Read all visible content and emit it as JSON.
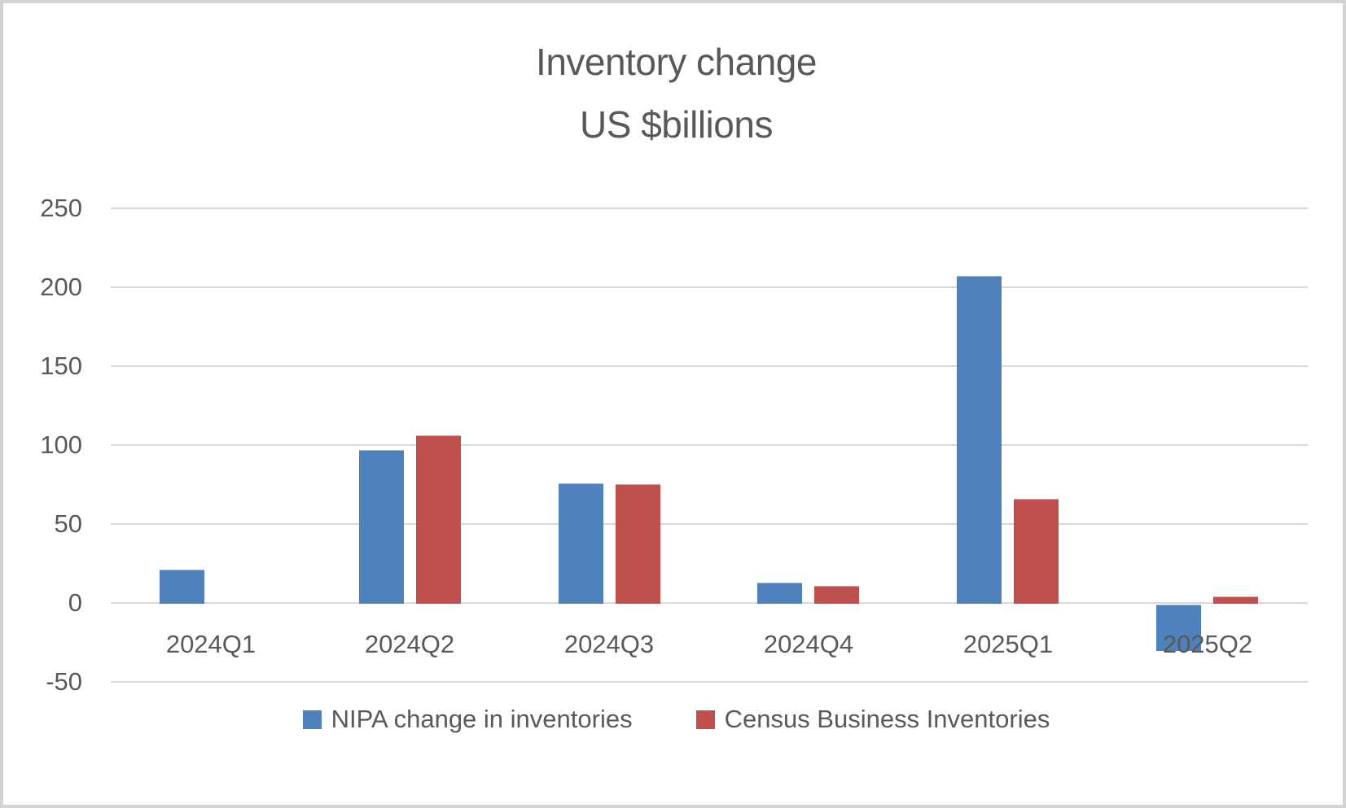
{
  "title": {
    "line1": "Inventory change",
    "line2": "US $billions"
  },
  "chart_data": {
    "type": "bar",
    "title": "Inventory change US $billions",
    "categories": [
      "2024Q1",
      "2024Q2",
      "2024Q3",
      "2024Q4",
      "2025Q1",
      "2025Q2"
    ],
    "series": [
      {
        "name": "NIPA change in inventories",
        "color": "#4F81BC",
        "values": [
          21,
          97,
          76,
          13,
          207,
          -30
        ]
      },
      {
        "name": "Census Business Inventories",
        "color": "#C0504D",
        "values": [
          null,
          106,
          75,
          11,
          66,
          4
        ]
      }
    ],
    "ylabel": "",
    "xlabel": "",
    "ylim": [
      -50,
      250
    ],
    "yticks": [
      250,
      200,
      150,
      100,
      50,
      0,
      -50
    ],
    "grid": true,
    "legend_position": "bottom",
    "gridline_color": "#D9D9D9",
    "text_color": "#595959",
    "background_color": "#FFFFFF"
  }
}
